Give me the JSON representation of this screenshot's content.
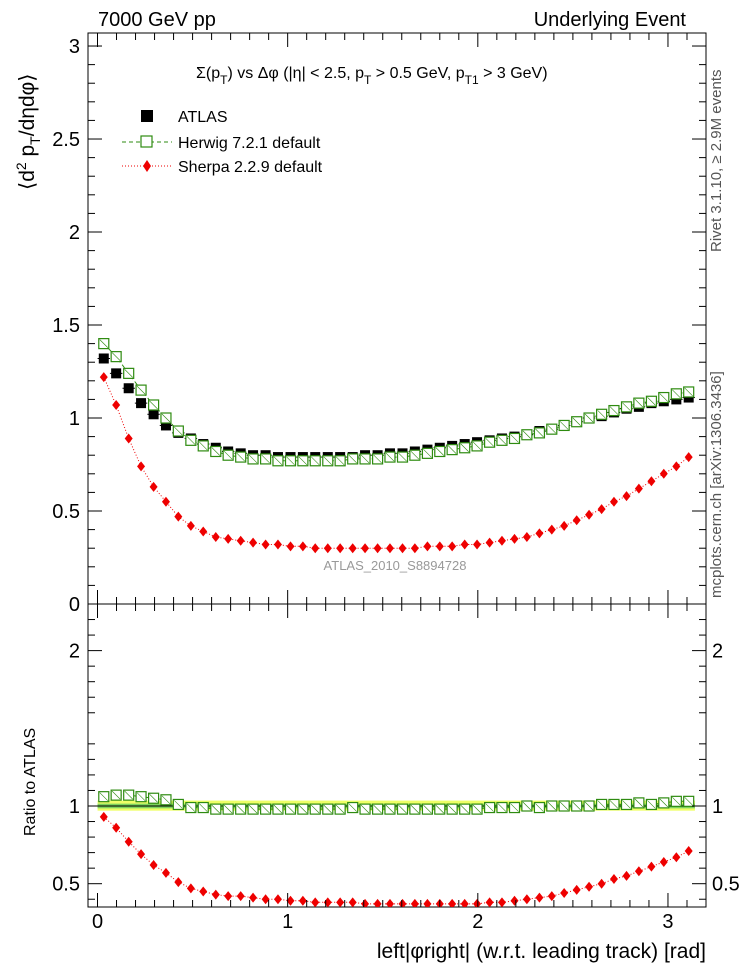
{
  "header": {
    "left": "7000 GeV pp",
    "right": "Underlying Event"
  },
  "side_labels": {
    "rivet": "Rivet 3.1.10, ≥ 2.9M events",
    "mcplots": "mcplots.cern.ch [arXiv:1306.3436]"
  },
  "watermark": "ATLAS_2010_S8894728",
  "colors": {
    "atlas": "#000000",
    "herwig": "#2e8b10",
    "sherpa": "#ee0000",
    "band_inner": "#7dd35e",
    "band_outer": "#eeff66"
  },
  "chart_data": [
    {
      "type": "scatter",
      "title": "Σ(p_T) vs Δφ (|η| < 2.5, p_T > 0.5 GeV, p_T1 > 3 GeV)",
      "title_parts": {
        "p1": "Σ(p",
        "s1": "T",
        "p2": ") vs Δφ (|η| < 2.5, p",
        "s2": "T",
        "p3": " > 0.5 GeV, p",
        "s3": "T1",
        "p4": " > 3 GeV)"
      },
      "ylabel": "⟨d² p_T/dηdφ⟩",
      "ylabel_parts": {
        "a": "⟨d",
        "sup": "2",
        "b": " p",
        "sub": "T",
        "c": "/dηdφ⟩"
      },
      "xlim": [
        -0.05,
        3.2
      ],
      "ylim": [
        0,
        3.07
      ],
      "yticks": [
        0,
        0.5,
        1,
        1.5,
        2,
        2.5,
        3
      ],
      "ytick_labels": [
        "0",
        "0.5",
        "1",
        "1.5",
        "2",
        "2.5",
        "3"
      ],
      "x": [
        0.033,
        0.098,
        0.164,
        0.229,
        0.295,
        0.36,
        0.425,
        0.491,
        0.556,
        0.622,
        0.687,
        0.753,
        0.818,
        0.884,
        0.949,
        1.015,
        1.08,
        1.145,
        1.211,
        1.276,
        1.342,
        1.407,
        1.473,
        1.538,
        1.604,
        1.669,
        1.735,
        1.8,
        1.865,
        1.931,
        1.996,
        2.062,
        2.127,
        2.193,
        2.258,
        2.324,
        2.389,
        2.454,
        2.52,
        2.585,
        2.651,
        2.716,
        2.782,
        2.847,
        2.913,
        2.978,
        3.044,
        3.109
      ],
      "legend": [
        {
          "name": "ATLAS"
        },
        {
          "name": "Herwig 7.2.1 default"
        },
        {
          "name": "Sherpa 2.2.9 default"
        }
      ],
      "series": [
        {
          "name": "ATLAS",
          "marker": "filled-square",
          "values": [
            1.32,
            1.24,
            1.16,
            1.08,
            1.02,
            0.96,
            0.92,
            0.89,
            0.86,
            0.84,
            0.82,
            0.81,
            0.8,
            0.8,
            0.79,
            0.79,
            0.79,
            0.79,
            0.79,
            0.79,
            0.79,
            0.8,
            0.8,
            0.81,
            0.81,
            0.82,
            0.83,
            0.84,
            0.85,
            0.86,
            0.87,
            0.88,
            0.89,
            0.9,
            0.91,
            0.93,
            0.94,
            0.96,
            0.98,
            1.0,
            1.01,
            1.03,
            1.05,
            1.06,
            1.08,
            1.09,
            1.1,
            1.11
          ]
        },
        {
          "name": "Herwig 7.2.1 default",
          "marker": "open-square",
          "values": [
            1.4,
            1.33,
            1.24,
            1.15,
            1.07,
            1.0,
            0.93,
            0.88,
            0.85,
            0.82,
            0.8,
            0.79,
            0.78,
            0.78,
            0.77,
            0.77,
            0.77,
            0.77,
            0.77,
            0.77,
            0.78,
            0.78,
            0.78,
            0.79,
            0.79,
            0.8,
            0.81,
            0.82,
            0.83,
            0.84,
            0.85,
            0.87,
            0.88,
            0.89,
            0.91,
            0.92,
            0.94,
            0.96,
            0.98,
            1.0,
            1.02,
            1.04,
            1.06,
            1.08,
            1.09,
            1.11,
            1.13,
            1.14
          ]
        },
        {
          "name": "Sherpa 2.2.9 default",
          "marker": "red-diamond",
          "values": [
            1.22,
            1.07,
            0.89,
            0.74,
            0.63,
            0.55,
            0.47,
            0.42,
            0.39,
            0.36,
            0.35,
            0.34,
            0.33,
            0.32,
            0.32,
            0.31,
            0.31,
            0.3,
            0.3,
            0.3,
            0.3,
            0.3,
            0.3,
            0.3,
            0.3,
            0.3,
            0.31,
            0.31,
            0.31,
            0.32,
            0.32,
            0.33,
            0.34,
            0.35,
            0.36,
            0.38,
            0.4,
            0.42,
            0.45,
            0.48,
            0.51,
            0.55,
            0.58,
            0.62,
            0.66,
            0.7,
            0.74,
            0.79
          ]
        }
      ]
    },
    {
      "type": "scatter",
      "title": "Ratio to ATLAS",
      "ylabel": "Ratio to ATLAS",
      "xlabel": "left|φright| (w.r.t. leading track) [rad]",
      "xlim": [
        -0.05,
        3.2
      ],
      "ylim": [
        0.35,
        2.3
      ],
      "xticks": [
        0,
        1,
        2,
        3
      ],
      "xtick_labels": [
        "0",
        "1",
        "2",
        "3"
      ],
      "yticks": [
        0.5,
        1,
        2
      ],
      "ytick_labels": [
        "0.5",
        "1",
        "2"
      ],
      "ytick_labels_right": [
        "0.5",
        "1",
        "2"
      ],
      "band_inner": [
        0.985,
        1.015
      ],
      "band_outer": [
        0.97,
        1.035
      ],
      "series": [
        {
          "name": "Herwig 7.2.1 default",
          "values": [
            1.06,
            1.07,
            1.07,
            1.06,
            1.05,
            1.04,
            1.01,
            0.99,
            0.99,
            0.98,
            0.98,
            0.98,
            0.98,
            0.98,
            0.98,
            0.98,
            0.98,
            0.98,
            0.98,
            0.98,
            0.99,
            0.98,
            0.98,
            0.98,
            0.98,
            0.98,
            0.98,
            0.98,
            0.98,
            0.98,
            0.98,
            0.99,
            0.99,
            0.99,
            1.0,
            0.99,
            1.0,
            1.0,
            1.0,
            1.0,
            1.01,
            1.01,
            1.01,
            1.02,
            1.01,
            1.02,
            1.03,
            1.03
          ]
        },
        {
          "name": "Sherpa 2.2.9 default",
          "values": [
            0.93,
            0.86,
            0.77,
            0.69,
            0.62,
            0.57,
            0.51,
            0.47,
            0.45,
            0.43,
            0.42,
            0.42,
            0.41,
            0.4,
            0.4,
            0.39,
            0.39,
            0.38,
            0.38,
            0.38,
            0.38,
            0.37,
            0.37,
            0.37,
            0.37,
            0.37,
            0.37,
            0.37,
            0.37,
            0.37,
            0.37,
            0.38,
            0.38,
            0.39,
            0.4,
            0.41,
            0.42,
            0.44,
            0.46,
            0.48,
            0.5,
            0.53,
            0.55,
            0.58,
            0.61,
            0.64,
            0.67,
            0.71
          ]
        }
      ]
    }
  ]
}
